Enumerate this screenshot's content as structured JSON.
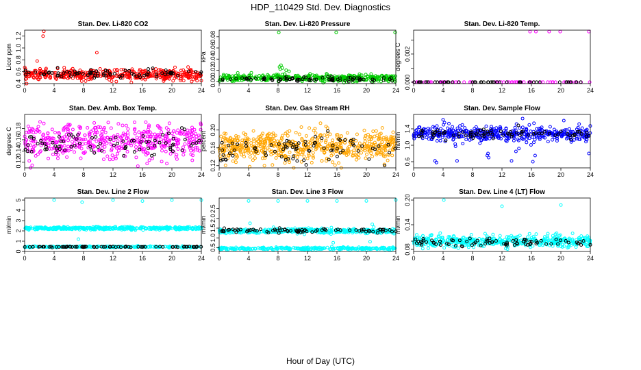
{
  "title": "HDP_110429  Std. Dev. Diagnostics",
  "xlabel": "Hour of Day (UTC)",
  "chart_data": [
    {
      "type": "scatter",
      "title": "Stan. Dev. Li-820 CO2",
      "ylabel": "Licor ppm",
      "xlim": [
        0,
        24
      ],
      "ylim": [
        0.4,
        1.3
      ],
      "xticks": [
        0,
        4,
        8,
        12,
        16,
        20,
        24
      ],
      "yticks": [
        0.4,
        0.6,
        0.8,
        1.0,
        1.2
      ],
      "yticklabels": [
        "0.4",
        "0.6",
        "0.8",
        "1.0",
        "1.2"
      ],
      "color": "#ff0000",
      "series": [
        {
          "color": "#ff0000",
          "base": 0.55,
          "spread": 0.045,
          "points": 420,
          "outliers": [
            [
              2.6,
              1.28
            ],
            [
              2.5,
              1.2
            ],
            [
              9.8,
              0.92
            ],
            [
              1.7,
              0.78
            ],
            [
              24,
              0.45
            ]
          ]
        },
        {
          "color": "#000000",
          "base": 0.57,
          "spread": 0.04,
          "points": 80,
          "outliers": []
        }
      ]
    },
    {
      "type": "scatter",
      "title": "Stan. Dev. Li-820 Pressure",
      "ylabel": "kPa",
      "xlim": [
        0,
        24
      ],
      "ylim": [
        -0.004,
        0.092
      ],
      "xticks": [
        0,
        4,
        8,
        12,
        16,
        20,
        24
      ],
      "yticks": [
        0.0,
        0.02,
        0.04,
        0.06,
        0.08
      ],
      "yticklabels": [
        "0.00",
        "0.02",
        "0.04",
        "0.06",
        "0.08"
      ],
      "color": "#00cc00",
      "series": [
        {
          "color": "#00cc00",
          "base": 0.006,
          "spread": 0.003,
          "points": 420,
          "outliers": [
            [
              8.1,
              0.088
            ],
            [
              15.9,
              0.088
            ],
            [
              23.9,
              0.088
            ],
            [
              8.2,
              0.026
            ],
            [
              8.4,
              0.029
            ],
            [
              8.3,
              0.022
            ],
            [
              8.6,
              0.024
            ],
            [
              9.1,
              0.02
            ],
            [
              9.5,
              0.018
            ],
            [
              0.6,
              0.012
            ]
          ]
        },
        {
          "color": "#000000",
          "base": 0.004,
          "spread": 0.002,
          "points": 80,
          "outliers": []
        }
      ]
    },
    {
      "type": "scatter",
      "title": "Stan. Dev. Li-820 Temp.",
      "ylabel": "degrees C",
      "xlim": [
        0,
        24
      ],
      "ylim": [
        -0.0001,
        0.0037
      ],
      "xticks": [
        0,
        4,
        8,
        12,
        16,
        20,
        24
      ],
      "yticks": [
        0.0,
        0.001,
        0.002,
        0.003
      ],
      "yticklabels": [
        "0.000",
        "",
        "0.002",
        ""
      ],
      "color": "#ff00ff",
      "series": [
        {
          "color": "#ff00ff",
          "base": 0.0,
          "spread": 0.0,
          "points": 60,
          "outliers": [
            [
              15.8,
              0.0036
            ],
            [
              16.6,
              0.0036
            ],
            [
              18.4,
              0.0036
            ],
            [
              19.9,
              0.0036
            ],
            [
              23.8,
              0.0036
            ]
          ]
        },
        {
          "color": "#000000",
          "base": 0.0,
          "spread": 0.0,
          "points": 50,
          "outliers": []
        }
      ]
    },
    {
      "type": "scatter",
      "title": "Stan. Dev. Amb. Box Temp.",
      "ylabel": "degrees C",
      "xlim": [
        0,
        24
      ],
      "ylim": [
        0.11,
        0.205
      ],
      "xticks": [
        0,
        4,
        8,
        12,
        16,
        20,
        24
      ],
      "yticks": [
        0.12,
        0.14,
        0.16,
        0.18
      ],
      "yticklabels": [
        "0.12",
        "0.14",
        "0.16",
        "0.18"
      ],
      "color": "#ff00ff",
      "series": [
        {
          "color": "#ff00ff",
          "base": 0.157,
          "spread": 0.015,
          "points": 480,
          "outliers": []
        },
        {
          "color": "#000000",
          "base": 0.155,
          "spread": 0.01,
          "points": 80,
          "outliers": []
        }
      ]
    },
    {
      "type": "scatter",
      "title": "Stan. Dev. Gas Stream RH",
      "ylabel": "percent",
      "xlim": [
        0,
        24
      ],
      "ylim": [
        0.115,
        0.235
      ],
      "xticks": [
        0,
        4,
        8,
        12,
        16,
        20,
        24
      ],
      "yticks": [
        0.12,
        0.16,
        0.2
      ],
      "yticklabels": [
        "0.12",
        "0.16",
        "0.20"
      ],
      "color": "#ffa500",
      "series": [
        {
          "color": "#ffa500",
          "base": 0.162,
          "spread": 0.017,
          "points": 600,
          "outliers": []
        },
        {
          "color": "#000000",
          "base": 0.16,
          "spread": 0.015,
          "points": 80,
          "outliers": []
        }
      ]
    },
    {
      "type": "scatter",
      "title": "Stan. Dev. Sample Flow",
      "ylabel": "ml/min",
      "xlim": [
        0,
        24
      ],
      "ylim": [
        0.45,
        1.75
      ],
      "xticks": [
        0,
        4,
        8,
        12,
        16,
        20,
        24
      ],
      "yticks": [
        0.6,
        1.0,
        1.4
      ],
      "yticklabels": [
        "0.6",
        "1.0",
        "1.4"
      ],
      "color": "#0000ff",
      "series": [
        {
          "color": "#0000ff",
          "base": 1.28,
          "spread": 0.09,
          "points": 460,
          "outliers": [
            [
              2.9,
              0.62
            ],
            [
              3.1,
              0.58
            ],
            [
              5.9,
              0.62
            ],
            [
              9.0,
              1.05
            ],
            [
              10.0,
              0.75
            ],
            [
              10.1,
              0.8
            ],
            [
              10.2,
              0.7
            ],
            [
              14.8,
              1.65
            ],
            [
              14.3,
              0.92
            ],
            [
              13.3,
              0.62
            ],
            [
              16.2,
              0.6
            ],
            [
              16.5,
              0.75
            ],
            [
              20.4,
              1.6
            ],
            [
              23.8,
              0.8
            ],
            [
              4.0,
              1.62
            ],
            [
              4.2,
              1.55
            ],
            [
              13.9,
              0.85
            ]
          ]
        },
        {
          "color": "#000000",
          "base": 1.27,
          "spread": 0.06,
          "points": 80,
          "outliers": []
        }
      ]
    },
    {
      "type": "scatter",
      "title": "Stan. Dev. Line 2 Flow",
      "ylabel": "ml/min",
      "xlim": [
        0,
        24
      ],
      "ylim": [
        0.0,
        5.2
      ],
      "xticks": [
        0,
        4,
        8,
        12,
        16,
        20,
        24
      ],
      "yticks": [
        0,
        1,
        2,
        3,
        4,
        5
      ],
      "yticklabels": [
        "0",
        "1",
        "2",
        "3",
        "4",
        "5"
      ],
      "color": "#00ffff",
      "series": [
        {
          "color": "#00ffff",
          "base": 2.25,
          "spread": 0.07,
          "points": 420,
          "outliers": [
            [
              4.0,
              5.0
            ],
            [
              7.8,
              4.8
            ],
            [
              12.0,
              5.0
            ],
            [
              16.0,
              4.9
            ],
            [
              20.0,
              5.0
            ],
            [
              24.0,
              5.0
            ],
            [
              7.3,
              1.2
            ]
          ]
        },
        {
          "color": "#00ffff",
          "base": 0.45,
          "spread": 0.03,
          "points": 250,
          "outliers": []
        },
        {
          "color": "#000000",
          "base": 0.45,
          "spread": 0.02,
          "points": 80,
          "outliers": []
        }
      ]
    },
    {
      "type": "scatter",
      "title": "Stan. Dev. Line 3 Flow",
      "ylabel": "ml/min",
      "xlim": [
        0,
        24
      ],
      "ylim": [
        0.3,
        3.05
      ],
      "xticks": [
        0,
        4,
        8,
        12,
        16,
        20,
        24
      ],
      "yticks": [
        0.5,
        1.0,
        1.5,
        2.0,
        2.5
      ],
      "yticklabels": [
        "0.5",
        "1.0",
        "1.5",
        "2.0",
        "2.5"
      ],
      "color": "#00ffff",
      "series": [
        {
          "color": "#00ffff",
          "base": 1.35,
          "spread": 0.06,
          "points": 400,
          "outliers": [
            [
              4.0,
              2.9
            ],
            [
              8.0,
              2.9
            ],
            [
              12.0,
              2.9
            ],
            [
              16.0,
              2.9
            ],
            [
              20.0,
              2.9
            ],
            [
              24.0,
              2.95
            ],
            [
              4.2,
              1.75
            ],
            [
              15.3,
              0.55
            ],
            [
              15.5,
              0.75
            ],
            [
              20.8,
              1.7
            ],
            [
              21.0,
              1.55
            ],
            [
              20.5,
              0.8
            ]
          ]
        },
        {
          "color": "#00ffff",
          "base": 0.45,
          "spread": 0.03,
          "points": 300,
          "outliers": []
        },
        {
          "color": "#000000",
          "base": 1.38,
          "spread": 0.05,
          "points": 80,
          "outliers": []
        }
      ]
    },
    {
      "type": "scatter",
      "title": "Stan. Dev. Line 4 (LT) Flow",
      "ylabel": "ml/min",
      "xlim": [
        0,
        24
      ],
      "ylim": [
        0.075,
        0.205
      ],
      "xticks": [
        0,
        4,
        8,
        12,
        16,
        20,
        24
      ],
      "yticks": [
        0.08,
        0.1,
        0.14,
        0.2
      ],
      "yticklabels": [
        "0.08",
        "",
        "0.14",
        "0.20"
      ],
      "color": "#00ffff",
      "series": [
        {
          "color": "#00ffff",
          "base": 0.1,
          "spread": 0.007,
          "points": 460,
          "outliers": [
            [
              4.1,
              0.2
            ],
            [
              12.0,
              0.185
            ],
            [
              20.0,
              0.188
            ]
          ]
        },
        {
          "color": "#000000",
          "base": 0.097,
          "spread": 0.005,
          "points": 80,
          "outliers": []
        }
      ]
    }
  ]
}
